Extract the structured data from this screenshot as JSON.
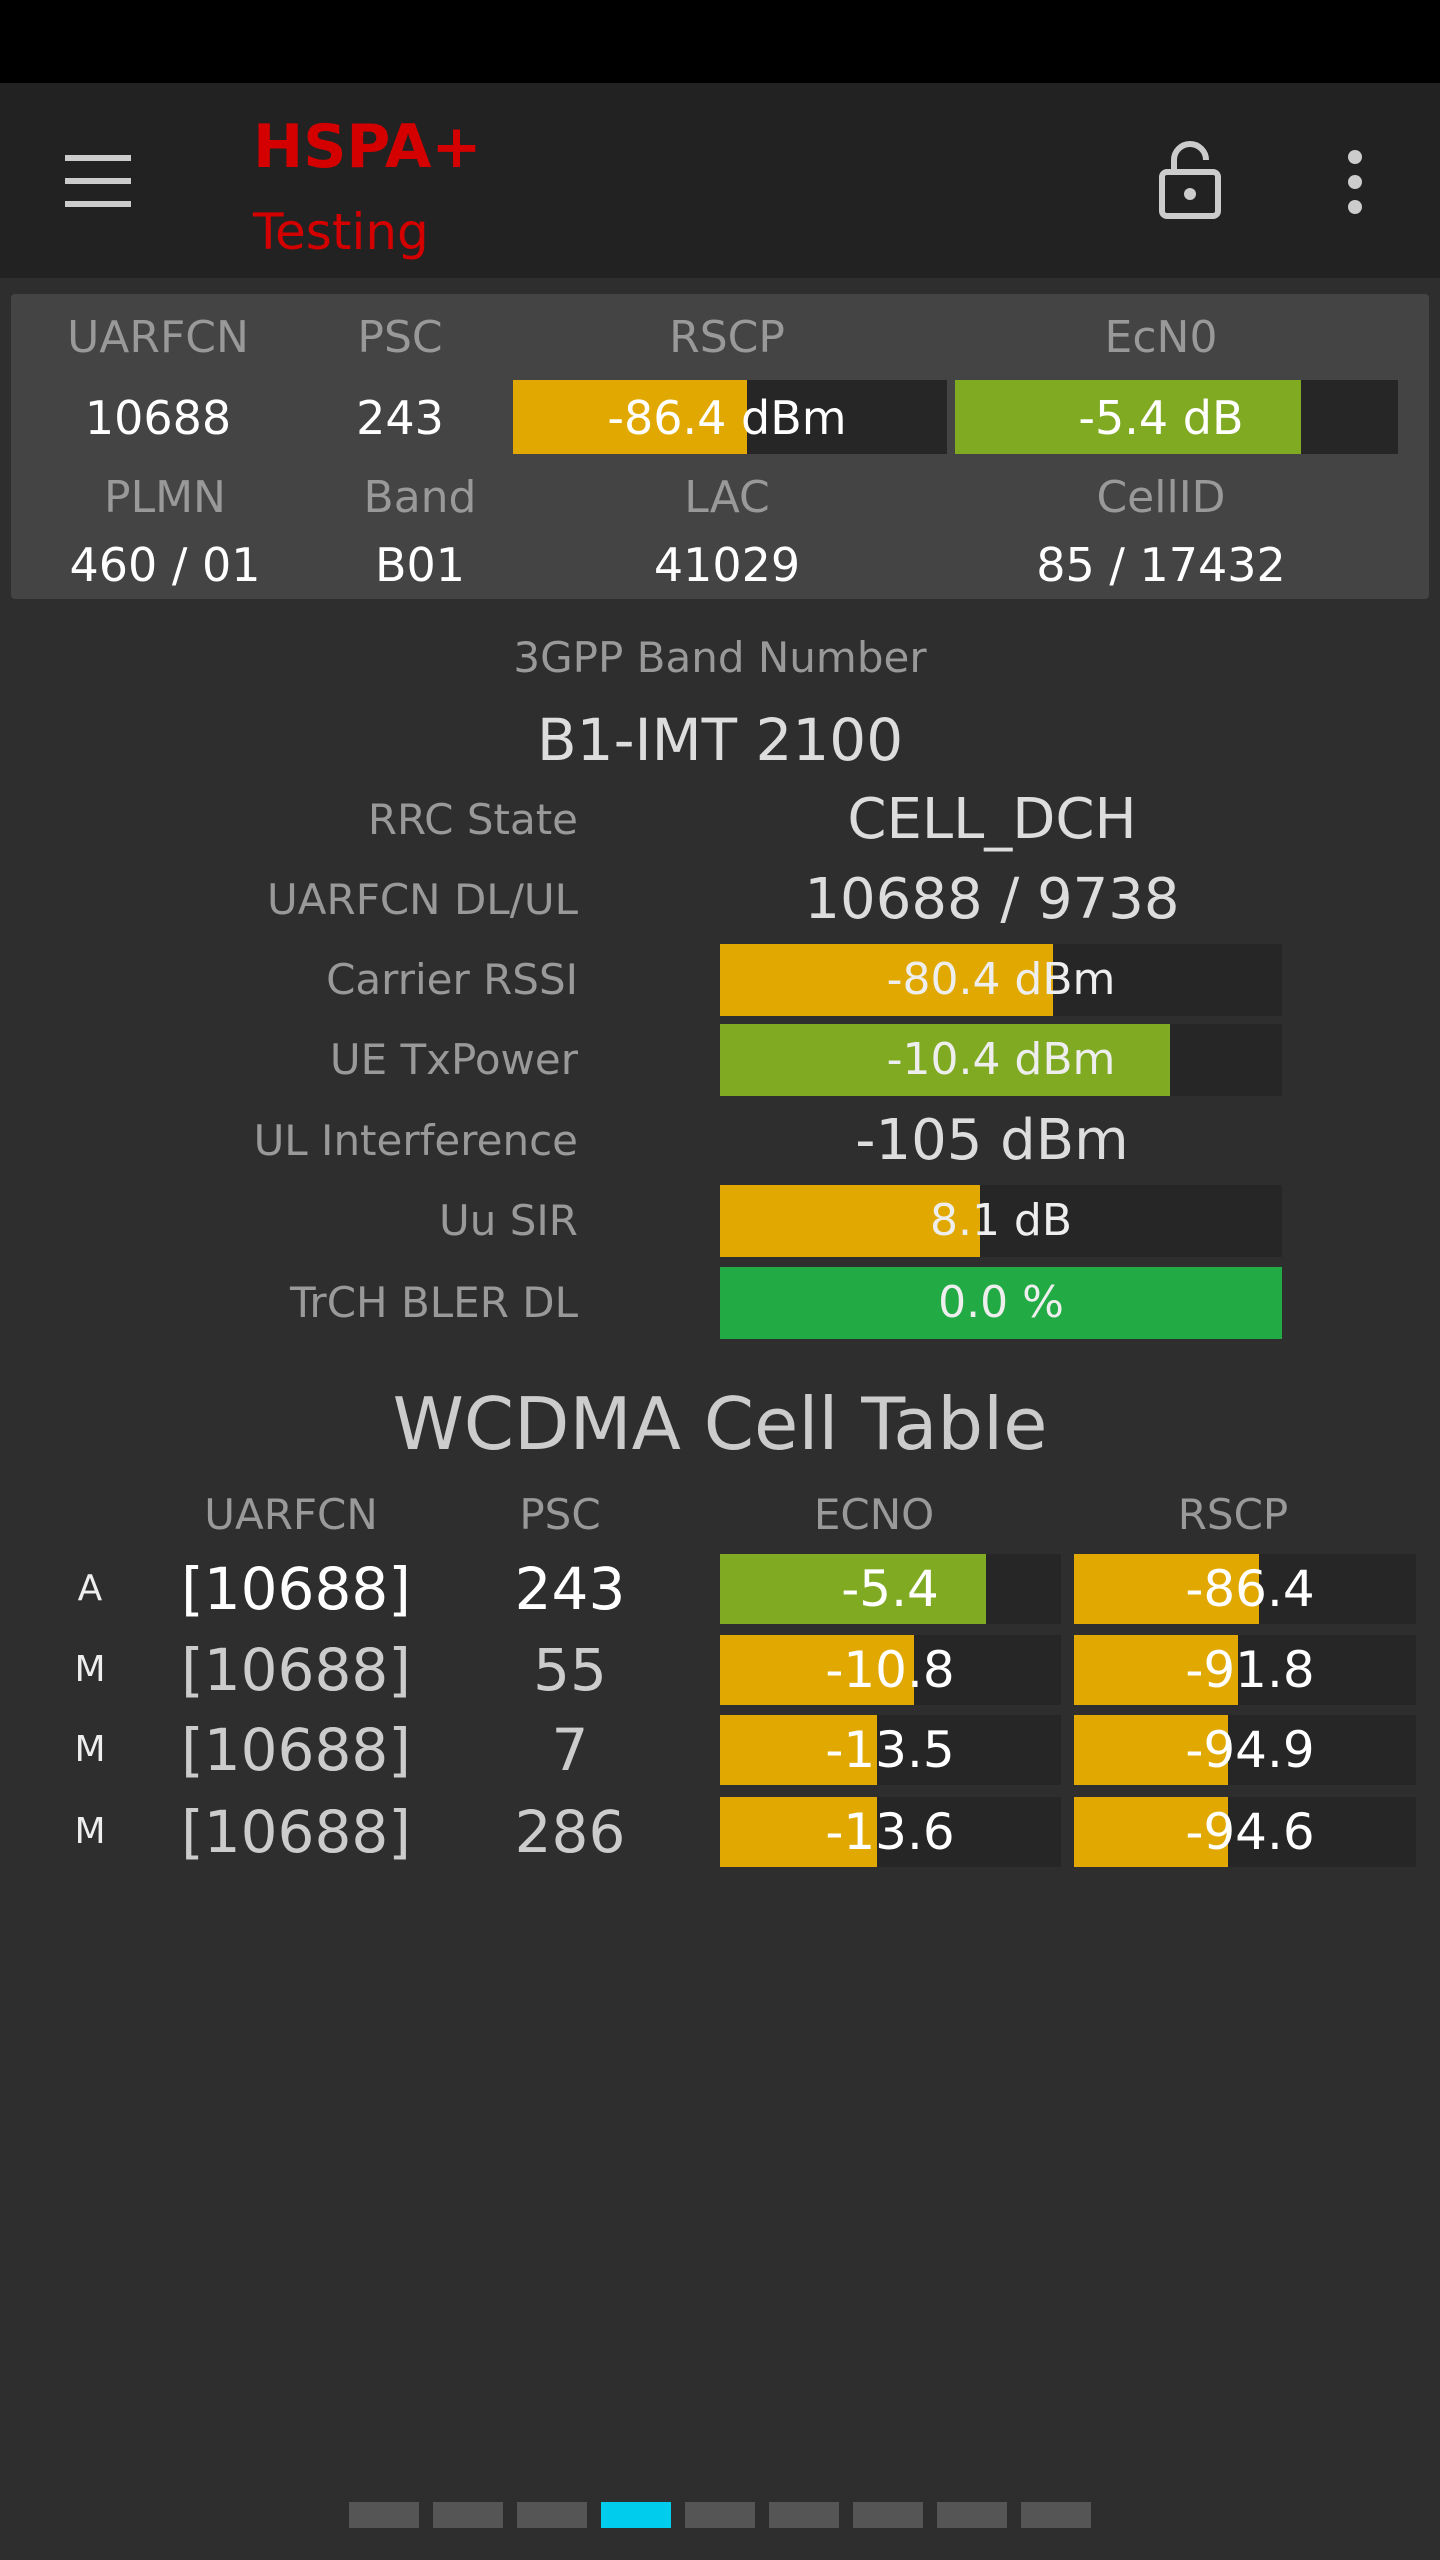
{
  "app_bar": {
    "title": "HSPA+",
    "subtitle": "Testing"
  },
  "summary": {
    "headers": [
      "UARFCN",
      "PSC",
      "RSCP",
      "EcN0"
    ],
    "values": [
      "10688",
      "243",
      "-86.4 dBm",
      "-5.4 dB"
    ],
    "headers2": [
      "PLMN",
      "Band",
      "LAC",
      "CellID"
    ],
    "values2": [
      "460 / 01",
      "B01",
      "41029",
      "85 / 17432"
    ]
  },
  "band": {
    "label": "3GPP Band Number",
    "value": "B1-IMT 2100"
  },
  "details": [
    {
      "label": "RRC State",
      "value": "CELL_DCH"
    },
    {
      "label": "UARFCN DL/UL",
      "value": "10688 / 9738"
    },
    {
      "label": "Carrier RSSI",
      "value": "-80.4 dBm"
    },
    {
      "label": "UE TxPower",
      "value": "-10.4 dBm"
    },
    {
      "label": "UL Interference",
      "value": "-105 dBm"
    },
    {
      "label": "Uu SIR",
      "value": "8.1 dB"
    },
    {
      "label": "TrCH BLER DL",
      "value": "0.0 %"
    }
  ],
  "cell_table": {
    "title": "WCDMA Cell Table",
    "headers": [
      "UARFCN",
      "PSC",
      "ECNO",
      "RSCP"
    ],
    "rows": [
      [
        "A",
        "[10688]",
        "243",
        "-5.4",
        "-86.4"
      ],
      [
        "M",
        "[10688]",
        "55",
        "-10.8",
        "-91.8"
      ],
      [
        "M",
        "[10688]",
        "7",
        "-13.5",
        "-94.9"
      ],
      [
        "M",
        "[10688]",
        "286",
        "-13.6",
        "-94.6"
      ]
    ]
  }
}
